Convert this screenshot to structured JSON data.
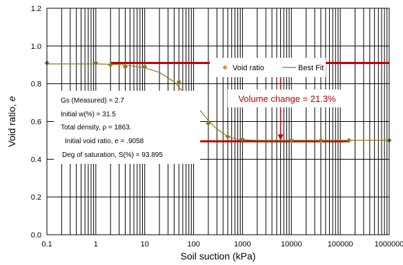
{
  "chart_data": {
    "type": "scatter",
    "xscale": "log",
    "xlim": [
      0.1,
      1000000
    ],
    "ylim": [
      0,
      1.2
    ],
    "xticks": [
      "0.1",
      "1",
      "10",
      "100",
      "1000",
      "10000",
      "100000",
      "1000000"
    ],
    "yticks": [
      "0.0",
      "0.2",
      "0.4",
      "0.6",
      "0.8",
      "1.0",
      "1.2"
    ],
    "xlabel": "Soil suction (kPa)",
    "ylabel_main": "Void ratio, ",
    "ylabel_symbol": "e",
    "grid": "log-minor-vertical",
    "legend": {
      "position": "top-right-inside",
      "entries": [
        "Void ratio",
        "Best Fit"
      ]
    },
    "series": [
      {
        "name": "Void ratio",
        "marker": "diamond",
        "color": "#8B7A1E",
        "x": [
          0.1,
          1,
          2,
          4,
          10,
          50,
          100,
          200,
          500,
          1000,
          10000,
          40000,
          150000,
          1000000
        ],
        "y": [
          0.91,
          0.91,
          0.9,
          0.89,
          0.89,
          0.81,
          0.7,
          0.59,
          0.52,
          0.505,
          0.5,
          0.5,
          0.5,
          0.5
        ]
      },
      {
        "name": "Best Fit",
        "line": true,
        "color": "#8B7A1E",
        "x": [
          0.1,
          1,
          2,
          4,
          10,
          20,
          40,
          60,
          100,
          150,
          200,
          300,
          500,
          800,
          1000,
          2000,
          10000,
          100000,
          1000000
        ],
        "y": [
          0.905,
          0.905,
          0.903,
          0.9,
          0.885,
          0.86,
          0.81,
          0.76,
          0.7,
          0.645,
          0.605,
          0.56,
          0.52,
          0.506,
          0.503,
          0.5,
          0.5,
          0.5,
          0.5
        ]
      }
    ],
    "annotations": {
      "upper_line_y": 0.91,
      "upper_line_xlim": [
        2,
        1000000
      ],
      "lower_line_y": 0.495,
      "lower_line_xlim": [
        100,
        150000
      ],
      "arrow_x": 6000,
      "volume_change_text": "Volume change = 21.3%",
      "properties": [
        "Gs (Measured) =  2.7",
        "Initial w(%) = 31.5",
        "Total density, ρ = 1863.",
        "Initial void ratio, e  = .9058",
        "Deg of saturation, S(%) = 93.895"
      ]
    },
    "colors": {
      "marker": "#8B7A1E",
      "fit_line": "#8B7A1E",
      "legend_marker": "#E08A3C",
      "annotation": "#C00000",
      "grid": "#000000"
    }
  }
}
